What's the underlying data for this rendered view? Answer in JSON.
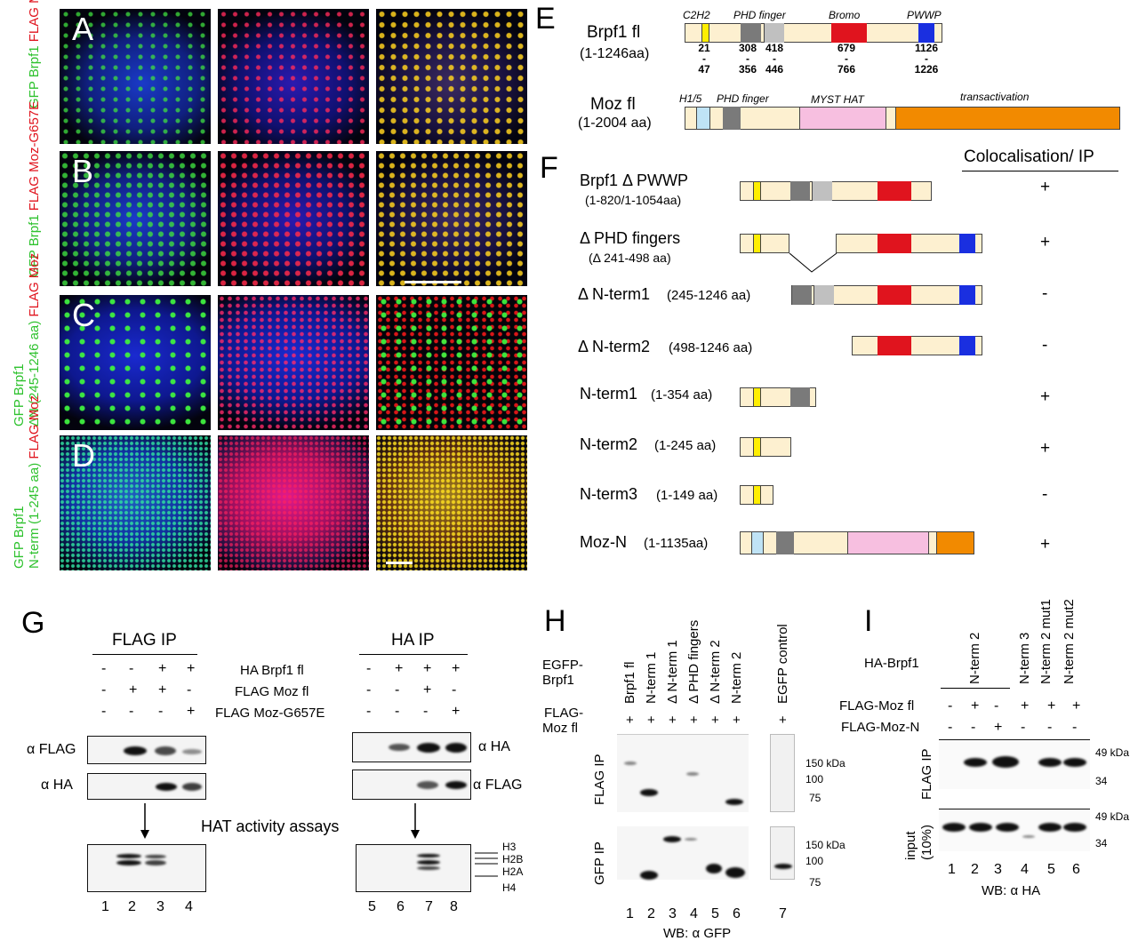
{
  "panels": {
    "A": {
      "letter": "A",
      "label_green": "GFP Brpf1",
      "label_red": "FLAG Moz"
    },
    "B": {
      "letter": "B",
      "label_green": "GFP Brpf1",
      "label_red": "FLAG Moz-G657E"
    },
    "C": {
      "letter": "C",
      "label_green1": "GFP Brpf1",
      "label_green2": "ΔN (245-1246 aa)",
      "label_red": "FLAG Moz"
    },
    "D": {
      "letter": "D",
      "label_green1": "GFP Brpf1",
      "label_green2": "N-term (1-245 aa)",
      "label_red": "FLAG Moz"
    }
  },
  "E": {
    "letter": "E",
    "brpf1": {
      "name": "Brpf1 fl",
      "range": "(1-1246aa)",
      "domains": [
        "C2H2",
        "PHD finger",
        "Bromo",
        "PWWP"
      ],
      "pos": [
        {
          "top": "21",
          "bot": "47"
        },
        {
          "top": "308",
          "bot": "356"
        },
        {
          "top": "418",
          "bot": "446"
        },
        {
          "top": "679",
          "bot": "766"
        },
        {
          "top": "1126",
          "bot": "1226"
        }
      ],
      "dash": "-"
    },
    "moz": {
      "name": "Moz fl",
      "range": "(1-2004 aa)",
      "domains": [
        "H1/5",
        "PHD finger",
        "MYST HAT",
        "transactivation"
      ]
    }
  },
  "F": {
    "letter": "F",
    "header": "Colocalisation/ IP",
    "rows": [
      {
        "name": "Brpf1 Δ PWWP",
        "sub": "(1-820/1-1054aa)",
        "result": "+"
      },
      {
        "name": "Δ PHD fingers",
        "sub": "(Δ 241-498 aa)",
        "result": "+"
      },
      {
        "name": "Δ N-term1",
        "sub": "(245-1246 aa)",
        "result": "-"
      },
      {
        "name": "Δ N-term2",
        "sub": "(498-1246 aa)",
        "result": "-"
      },
      {
        "name": "N-term1",
        "sub": "(1-354 aa)",
        "result": "+"
      },
      {
        "name": "N-term2",
        "sub": "(1-245 aa)",
        "result": "+"
      },
      {
        "name": "N-term3",
        "sub": "(1-149 aa)",
        "result": "-"
      },
      {
        "name": "Moz-N",
        "sub": "(1-1135aa)",
        "result": "+"
      }
    ]
  },
  "G": {
    "letter": "G",
    "flag_ip": "FLAG IP",
    "ha_ip": "HA IP",
    "rows": [
      "HA Brpf1 fl",
      "FLAG Moz fl",
      "FLAG Moz-G657E"
    ],
    "flag_signs": [
      [
        "-",
        "-",
        "+",
        "+"
      ],
      [
        "-",
        "+",
        "+",
        "-"
      ],
      [
        "-",
        "-",
        "-",
        "+"
      ]
    ],
    "ha_signs": [
      [
        "-",
        "+",
        "+",
        "+"
      ],
      [
        "-",
        "-",
        "+",
        "-"
      ],
      [
        "-",
        "-",
        "-",
        "+"
      ]
    ],
    "ab_flag": "α FLAG",
    "ab_ha": "α HA",
    "ab_ha2": "α HA",
    "ab_flag2": "α FLAG",
    "hat": "HAT activity assays",
    "histones": [
      "H3",
      "H2B",
      "H2A",
      "H4"
    ],
    "lanes": [
      "1",
      "2",
      "3",
      "4",
      "5",
      "6",
      "7",
      "8"
    ]
  },
  "H": {
    "letter": "H",
    "egfp": "EGFP-",
    "egfp2": "Brpf1",
    "flag": "FLAG-",
    "flag2": "Moz fl",
    "constructs": [
      "Brpf1 fl",
      "N-term 1",
      "Δ N-term 1",
      "Δ PHD fingers",
      "Δ N-term 2",
      "N-term 2",
      "EGFP control"
    ],
    "plus": "+",
    "ip1": "FLAG IP",
    "ip2": "GFP IP",
    "mw1": [
      "150 kDa",
      "100",
      "75"
    ],
    "mw2": [
      "150 kDa",
      "100",
      "75"
    ],
    "lanes": [
      "1",
      "2",
      "3",
      "4",
      "5",
      "6",
      "7"
    ],
    "wb": "WB: α GFP"
  },
  "I": {
    "letter": "I",
    "ha": "HA-Brpf1",
    "constructs": [
      "N-term 2",
      "N-term 3",
      "N-term 2 mut1",
      "N-term 2 mut2"
    ],
    "rows": [
      "FLAG-Moz fl",
      "FLAG-Moz-N"
    ],
    "signs": [
      [
        "-",
        "+",
        "-",
        "+",
        "+",
        "+"
      ],
      [
        "-",
        "-",
        "+",
        "-",
        "-",
        "-"
      ]
    ],
    "ip": "FLAG IP",
    "input1": "input",
    "input2": "(10%)",
    "mw1": [
      "49 kDa",
      "34"
    ],
    "mw2": [
      "49 kDa",
      "34"
    ],
    "lanes": [
      "1",
      "2",
      "3",
      "4",
      "5",
      "6"
    ],
    "wb": "WB: α HA"
  },
  "colors": {
    "green": "#2ec22e",
    "red": "#e0141e",
    "yellow": "#ffee00",
    "blue": "#1a2fe0",
    "beige": "#fdf0d0",
    "pink": "#f7bfe0",
    "orange": "#f28a00",
    "lightblue": "#bfe3f5",
    "gray": "#7a7a7a",
    "lightgray": "#c0c0c0"
  }
}
